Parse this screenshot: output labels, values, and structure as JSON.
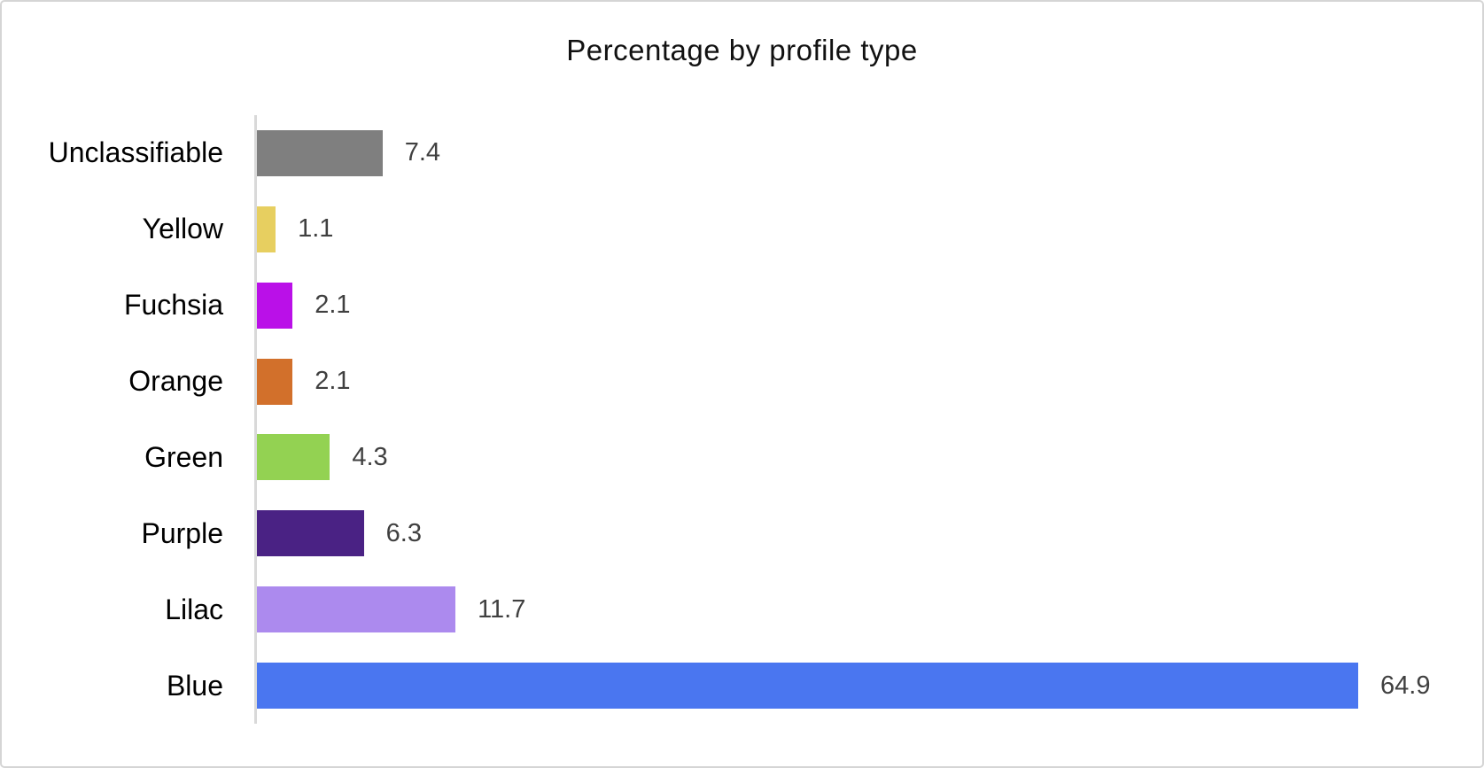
{
  "chart_data": {
    "type": "bar",
    "orientation": "horizontal",
    "title": "Percentage by profile type",
    "categories": [
      "Unclassifiable",
      "Yellow",
      "Fuchsia",
      "Orange",
      "Green",
      "Purple",
      "Lilac",
      "Blue"
    ],
    "values": [
      7.4,
      1.1,
      2.1,
      2.1,
      4.3,
      6.3,
      11.7,
      64.9
    ],
    "value_labels": [
      "7.4",
      "1.1",
      "2.1",
      "2.1",
      "4.3",
      "6.3",
      "11.7",
      "64.9"
    ],
    "bar_colors": [
      "#7F7F7F",
      "#E7CF60",
      "#BA10E8",
      "#D2702B",
      "#93D252",
      "#4A2284",
      "#AC8AEE",
      "#4A76F0"
    ],
    "xlim": [
      0,
      67
    ],
    "grid": false,
    "legend": "none",
    "value_labels_shown": true
  },
  "colors": {
    "axis_line": "#D9D9D9",
    "value_text": "#404040",
    "category_text": "#000000",
    "frame_border": "#D5D5D5",
    "background": "#FFFFFF",
    "title_text": "#111111"
  }
}
